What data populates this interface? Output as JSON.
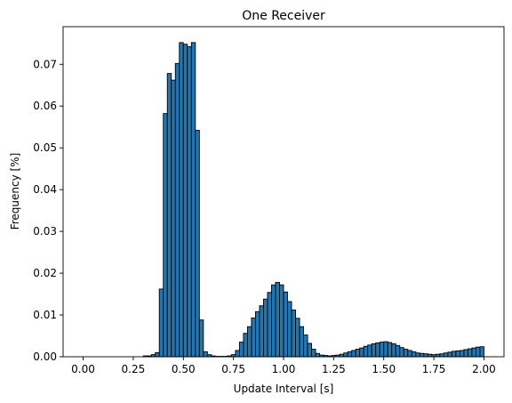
{
  "chart_data": {
    "type": "bar",
    "title": "One Receiver",
    "xlabel": "Update Interval [s]",
    "ylabel": "Frequency [%]",
    "xlim": [
      -0.1,
      2.1
    ],
    "ylim": [
      0,
      0.079
    ],
    "xticks": [
      "0.00",
      "0.25",
      "0.50",
      "0.75",
      "1.00",
      "1.25",
      "1.50",
      "1.75",
      "2.00"
    ],
    "yticks": [
      "0.00",
      "0.01",
      "0.02",
      "0.03",
      "0.04",
      "0.05",
      "0.06",
      "0.07"
    ],
    "grid": false,
    "bar_color": "#1f77b4",
    "edge_color": "#000000",
    "bins": {
      "x": [
        0.0,
        0.02,
        0.04,
        0.06,
        0.08,
        0.1,
        0.12,
        0.14,
        0.16,
        0.18,
        0.2,
        0.22,
        0.24,
        0.26,
        0.28,
        0.3,
        0.32,
        0.34,
        0.36,
        0.38,
        0.4,
        0.42,
        0.44,
        0.46,
        0.48,
        0.5,
        0.52,
        0.54,
        0.56,
        0.58,
        0.6,
        0.62,
        0.64,
        0.66,
        0.68,
        0.7,
        0.72,
        0.74,
        0.76,
        0.78,
        0.8,
        0.82,
        0.84,
        0.86,
        0.88,
        0.9,
        0.92,
        0.94,
        0.96,
        0.98,
        1.0,
        1.02,
        1.04,
        1.06,
        1.08,
        1.1,
        1.12,
        1.14,
        1.16,
        1.18,
        1.2,
        1.22,
        1.24,
        1.26,
        1.28,
        1.3,
        1.32,
        1.34,
        1.36,
        1.38,
        1.4,
        1.42,
        1.44,
        1.46,
        1.48,
        1.5,
        1.52,
        1.54,
        1.56,
        1.58,
        1.6,
        1.62,
        1.64,
        1.66,
        1.68,
        1.7,
        1.72,
        1.74,
        1.76,
        1.78,
        1.8,
        1.82,
        1.84,
        1.86,
        1.88,
        1.9,
        1.92,
        1.94,
        1.96,
        1.98
      ],
      "values": [
        0,
        0,
        0,
        0,
        0,
        0,
        0,
        0,
        0,
        0,
        0,
        0,
        0,
        0,
        0,
        0.0002,
        0.0002,
        0.0005,
        0.001,
        0.0162,
        0.0582,
        0.0678,
        0.0662,
        0.0702,
        0.0752,
        0.0748,
        0.0742,
        0.0752,
        0.0542,
        0.0088,
        0.0012,
        0.0005,
        0.0002,
        0.0001,
        0.0001,
        0.0001,
        0.0002,
        0.0005,
        0.0015,
        0.0035,
        0.0056,
        0.0072,
        0.0093,
        0.0108,
        0.0122,
        0.0138,
        0.0154,
        0.0172,
        0.0178,
        0.0172,
        0.0155,
        0.0132,
        0.0112,
        0.0092,
        0.0072,
        0.0052,
        0.0032,
        0.0018,
        0.0008,
        0.0004,
        0.0003,
        0.0002,
        0.0003,
        0.0004,
        0.0006,
        0.0009,
        0.0012,
        0.0015,
        0.0018,
        0.0021,
        0.0025,
        0.0028,
        0.0031,
        0.0033,
        0.0035,
        0.0036,
        0.0034,
        0.0031,
        0.0027,
        0.0022,
        0.0018,
        0.0015,
        0.0012,
        0.0009,
        0.0008,
        0.0007,
        0.0006,
        0.0005,
        0.0006,
        0.0007,
        0.0009,
        0.0011,
        0.0013,
        0.0014,
        0.0015,
        0.0017,
        0.0019,
        0.0021,
        0.0023,
        0.0024
      ]
    }
  }
}
